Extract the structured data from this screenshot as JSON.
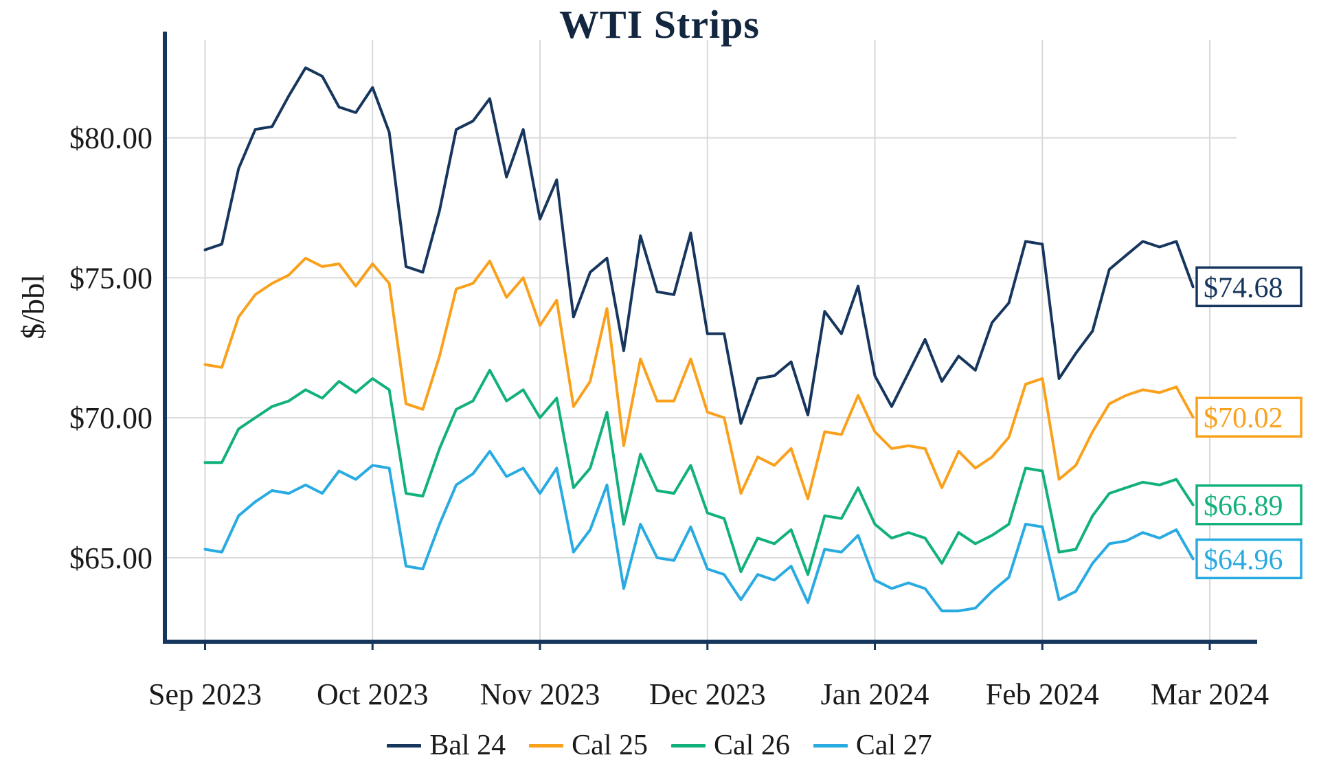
{
  "chart_data": {
    "type": "line",
    "title": "WTI Strips",
    "xlabel": "",
    "ylabel": "$/bbl",
    "grid": true,
    "legend_position": "bottom",
    "ylim": [
      62,
      83.5
    ],
    "xlim": [
      -0.24,
      6.16
    ],
    "x_unit": "months since Sep 2023",
    "x_ticks": [
      {
        "pos": 0,
        "label": "Sep 2023"
      },
      {
        "pos": 1,
        "label": "Oct 2023"
      },
      {
        "pos": 2,
        "label": "Nov 2023"
      },
      {
        "pos": 3,
        "label": "Dec 2023"
      },
      {
        "pos": 4,
        "label": "Jan 2024"
      },
      {
        "pos": 5,
        "label": "Feb 2024"
      },
      {
        "pos": 6,
        "label": "Mar 2024"
      }
    ],
    "y_ticks": [
      {
        "value": 65,
        "label": "$65.00"
      },
      {
        "value": 70,
        "label": "$70.00"
      },
      {
        "value": 75,
        "label": "$75.00"
      },
      {
        "value": 80,
        "label": "$80.00"
      }
    ],
    "x_months": [
      0,
      0.1,
      0.2,
      0.3,
      0.4,
      0.5,
      0.6,
      0.7,
      0.8,
      0.9,
      1.0,
      1.1,
      1.2,
      1.3,
      1.4,
      1.5,
      1.6,
      1.7,
      1.8,
      1.9,
      2.0,
      2.1,
      2.2,
      2.3,
      2.4,
      2.5,
      2.6,
      2.7,
      2.8,
      2.9,
      3.0,
      3.1,
      3.2,
      3.3,
      3.4,
      3.5,
      3.6,
      3.7,
      3.8,
      3.9,
      4.0,
      4.1,
      4.2,
      4.3,
      4.4,
      4.5,
      4.6,
      4.7,
      4.8,
      4.9,
      5.0,
      5.1,
      5.2,
      5.3,
      5.4,
      5.5,
      5.6,
      5.7,
      5.8,
      5.9
    ],
    "series": [
      {
        "name": "Bal 24",
        "color": "#17365d",
        "end_label": "$74.68",
        "end_value": 74.68,
        "values": [
          76.0,
          76.2,
          78.9,
          80.3,
          80.4,
          81.5,
          82.5,
          82.2,
          81.1,
          80.9,
          81.8,
          80.2,
          75.4,
          75.2,
          77.4,
          80.3,
          80.6,
          81.4,
          78.6,
          80.3,
          77.1,
          78.5,
          73.6,
          75.2,
          75.7,
          72.4,
          76.5,
          74.5,
          74.4,
          76.6,
          73.0,
          73.0,
          69.8,
          71.4,
          71.5,
          72.0,
          70.1,
          73.8,
          73.0,
          74.7,
          71.5,
          70.4,
          71.6,
          72.8,
          71.3,
          72.2,
          71.7,
          73.4,
          74.1,
          76.3,
          76.2,
          71.4,
          72.3,
          73.1,
          75.3,
          75.8,
          76.3,
          76.1,
          76.3,
          74.68
        ]
      },
      {
        "name": "Cal 25",
        "color": "#f9a11c",
        "end_label": "$70.02",
        "end_value": 70.02,
        "values": [
          71.9,
          71.8,
          73.6,
          74.4,
          74.8,
          75.1,
          75.7,
          75.4,
          75.5,
          74.7,
          75.5,
          74.8,
          70.5,
          70.3,
          72.2,
          74.6,
          74.8,
          75.6,
          74.3,
          75.0,
          73.3,
          74.2,
          70.4,
          71.3,
          73.9,
          69.0,
          72.1,
          70.6,
          70.6,
          72.1,
          70.2,
          70.0,
          67.3,
          68.6,
          68.3,
          68.9,
          67.1,
          69.5,
          69.4,
          70.8,
          69.5,
          68.9,
          69.0,
          68.9,
          67.5,
          68.8,
          68.2,
          68.6,
          69.3,
          71.2,
          71.4,
          67.8,
          68.3,
          69.5,
          70.5,
          70.8,
          71.0,
          70.9,
          71.1,
          70.02
        ]
      },
      {
        "name": "Cal 26",
        "color": "#12b17c",
        "end_label": "$66.89",
        "end_value": 66.89,
        "values": [
          68.4,
          68.4,
          69.6,
          70.0,
          70.4,
          70.6,
          71.0,
          70.7,
          71.3,
          70.9,
          71.4,
          71.0,
          67.3,
          67.2,
          68.9,
          70.3,
          70.6,
          71.7,
          70.6,
          71.0,
          70.0,
          70.7,
          67.5,
          68.2,
          70.2,
          66.2,
          68.7,
          67.4,
          67.3,
          68.3,
          66.6,
          66.4,
          64.5,
          65.7,
          65.5,
          66.0,
          64.4,
          66.5,
          66.4,
          67.5,
          66.2,
          65.7,
          65.9,
          65.7,
          64.8,
          65.9,
          65.5,
          65.8,
          66.2,
          68.2,
          68.1,
          65.2,
          65.3,
          66.5,
          67.3,
          67.5,
          67.7,
          67.6,
          67.8,
          66.89
        ]
      },
      {
        "name": "Cal 27",
        "color": "#29abe2",
        "end_label": "$64.96",
        "end_value": 64.96,
        "values": [
          65.3,
          65.2,
          66.5,
          67.0,
          67.4,
          67.3,
          67.6,
          67.3,
          68.1,
          67.8,
          68.3,
          68.2,
          64.7,
          64.6,
          66.2,
          67.6,
          68.0,
          68.8,
          67.9,
          68.2,
          67.3,
          68.2,
          65.2,
          66.0,
          67.6,
          63.9,
          66.2,
          65.0,
          64.9,
          66.1,
          64.6,
          64.4,
          63.5,
          64.4,
          64.2,
          64.7,
          63.4,
          65.3,
          65.2,
          65.8,
          64.2,
          63.9,
          64.1,
          63.9,
          63.1,
          63.1,
          63.2,
          63.8,
          64.3,
          66.2,
          66.1,
          63.5,
          63.8,
          64.8,
          65.5,
          65.6,
          65.9,
          65.7,
          66.0,
          64.96
        ]
      }
    ],
    "colors": {
      "grid": "#d9d9d9",
      "axis": "#17365d",
      "tick_text": "#1a1a1a",
      "title_text": "#12263f"
    }
  }
}
